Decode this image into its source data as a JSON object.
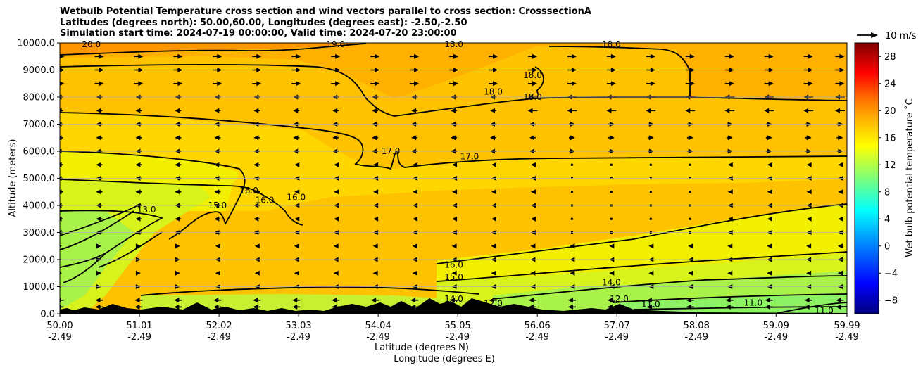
{
  "title_lines": [
    "Wetbulb Potential Temperature cross section and wind vectors parallel to cross section: CrosssectionA",
    "Latitudes (degrees north): 50.00,60.00, Longitudes (degrees east): -2.50,-2.50",
    "Simulation start time: 2024-07-19 00:00:00, Valid time: 2024-07-20 23:00:00"
  ],
  "chart_data": {
    "type": "heatmap",
    "subtype": "vertical cross section (filled contours + contour lines + wind vectors)",
    "ylabel": "Altitude (meters)",
    "xlabel_line1": "Latitude (degrees N)",
    "xlabel_line2": "Longitude (degrees E)",
    "ylim": [
      0,
      10000
    ],
    "y_ticks": [
      0,
      1000,
      2000,
      3000,
      4000,
      5000,
      6000,
      7000,
      8000,
      9000,
      10000
    ],
    "y_tick_labels": [
      "0.0",
      "1000.0",
      "2000.0",
      "3000.0",
      "4000.0",
      "5000.0",
      "6000.0",
      "7000.0",
      "8000.0",
      "9000.0",
      "10000.0"
    ],
    "xlim": [
      50.0,
      59.99
    ],
    "x_ticks": [
      50.0,
      51.01,
      52.02,
      53.03,
      54.04,
      55.05,
      56.06,
      57.07,
      58.08,
      59.09,
      59.99
    ],
    "x_tick_labels_lat": [
      "50.00",
      "51.01",
      "52.02",
      "53.03",
      "54.04",
      "55.05",
      "56.06",
      "57.07",
      "58.08",
      "59.09",
      "59.99"
    ],
    "x_tick_labels_lon": [
      "-2.49",
      "-2.49",
      "-2.49",
      "-2.49",
      "-2.49",
      "-2.49",
      "-2.49",
      "-2.49",
      "-2.49",
      "-2.49",
      "-2.49"
    ],
    "grid": "horizontal",
    "colorbar": {
      "label": "Wet bulb potential temperature ˚C",
      "ticks": [
        -8,
        -4,
        0,
        4,
        8,
        12,
        16,
        20,
        24,
        28
      ],
      "range": [
        -10,
        30
      ],
      "colormap": "jet"
    },
    "wind_key": {
      "label": "10 m/s",
      "value": 10
    },
    "contour_levels": [
      11.0,
      12.0,
      13.0,
      14.0,
      15.0,
      16.0,
      17.0,
      18.0,
      19.0,
      20.0
    ],
    "contour_labels": [
      {
        "text": "11.0",
        "lat": 59.7,
        "alt": 120
      },
      {
        "text": "11.0",
        "lat": 58.8,
        "alt": 400
      },
      {
        "text": "11.0",
        "lat": 57.5,
        "alt": 350
      },
      {
        "text": "12.0",
        "lat": 57.1,
        "alt": 550
      },
      {
        "text": "12.0",
        "lat": 55.5,
        "alt": 380
      },
      {
        "text": "13.0",
        "lat": 51.1,
        "alt": 3850
      },
      {
        "text": "14.0",
        "lat": 55.0,
        "alt": 550
      },
      {
        "text": "14.0",
        "lat": 57.0,
        "alt": 1150
      },
      {
        "text": "15.0",
        "lat": 52.0,
        "alt": 4000
      },
      {
        "text": "15.0",
        "lat": 55.0,
        "alt": 1350
      },
      {
        "text": "16.0",
        "lat": 52.4,
        "alt": 4550
      },
      {
        "text": "16.0",
        "lat": 52.6,
        "alt": 4200
      },
      {
        "text": "16.0",
        "lat": 53.0,
        "alt": 4300
      },
      {
        "text": "16.0",
        "lat": 55.0,
        "alt": 1800
      },
      {
        "text": "17.0",
        "lat": 54.2,
        "alt": 6000
      },
      {
        "text": "17.0",
        "lat": 55.2,
        "alt": 5800
      },
      {
        "text": "18.0",
        "lat": 55.0,
        "alt": 9950
      },
      {
        "text": "18.0",
        "lat": 55.5,
        "alt": 8200
      },
      {
        "text": "18.0",
        "lat": 56.0,
        "alt": 8000
      },
      {
        "text": "18.0",
        "lat": 56.0,
        "alt": 8800
      },
      {
        "text": "18.0",
        "lat": 57.0,
        "alt": 9950
      },
      {
        "text": "19.0",
        "lat": 53.5,
        "alt": 9950
      },
      {
        "text": "20.0",
        "lat": 50.4,
        "alt": 9950
      }
    ],
    "wind_rows_alt": [
      250,
      500,
      1000,
      1500,
      2000,
      2500,
      3000,
      3500,
      4000,
      4500,
      5000,
      5500,
      6000,
      6500,
      7000,
      7500,
      8000,
      8500,
      9000,
      9500
    ],
    "wind_cols_lat": [
      50.0,
      50.5,
      51.0,
      51.5,
      52.0,
      52.5,
      53.0,
      53.5,
      54.0,
      54.5,
      55.0,
      55.5,
      56.0,
      56.5,
      57.0,
      57.5,
      58.0,
      58.5,
      59.0,
      59.5,
      59.9
    ],
    "terrain_peaks": [
      {
        "lat": 50.4,
        "alt": 60
      },
      {
        "lat": 51.2,
        "alt": 120
      },
      {
        "lat": 51.8,
        "alt": 220
      },
      {
        "lat": 52.6,
        "alt": 150
      },
      {
        "lat": 53.3,
        "alt": 80
      },
      {
        "lat": 54.0,
        "alt": 300
      },
      {
        "lat": 54.5,
        "alt": 350
      },
      {
        "lat": 54.7,
        "alt": 250
      },
      {
        "lat": 55.3,
        "alt": 450
      },
      {
        "lat": 55.6,
        "alt": 300
      },
      {
        "lat": 56.0,
        "alt": 200
      },
      {
        "lat": 57.0,
        "alt": 250
      }
    ],
    "colors": {
      "background_fill": "#ffc400",
      "contour_line": "#000000",
      "terrain": "#000000",
      "grid": "#b0b0b0"
    }
  }
}
